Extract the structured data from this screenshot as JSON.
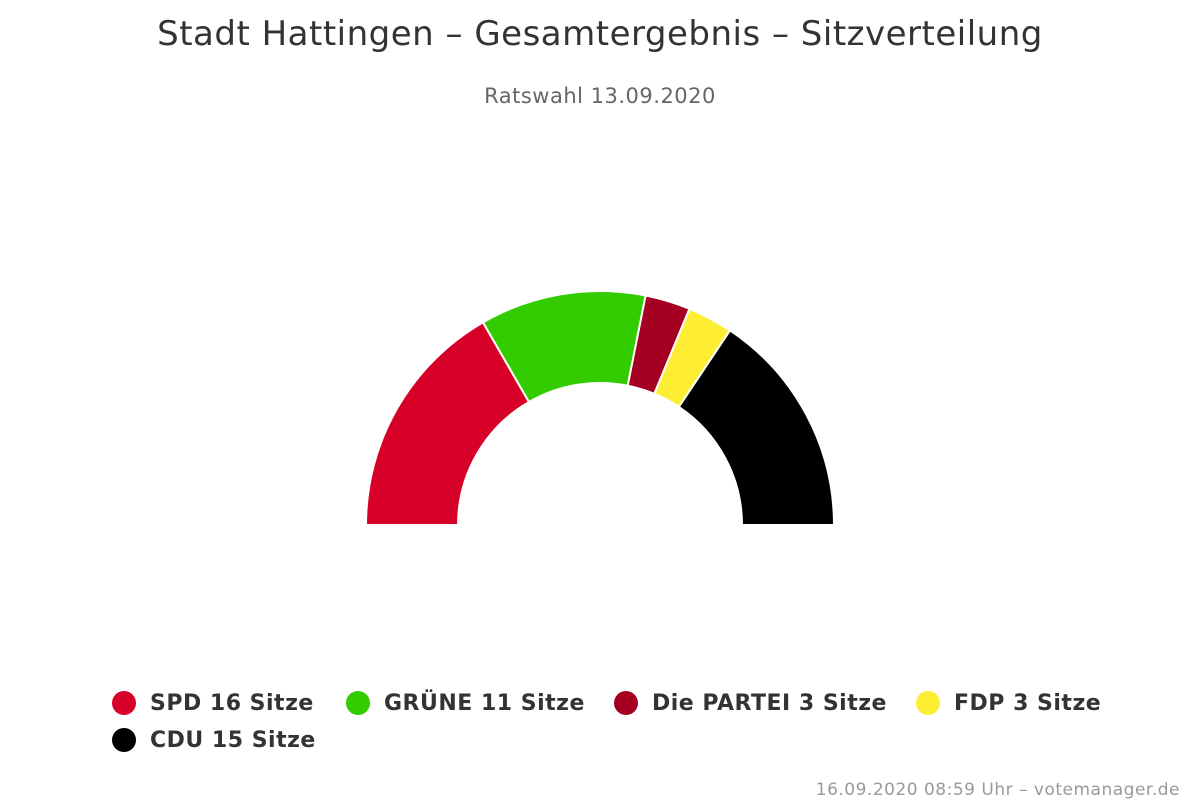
{
  "title": "Stadt Hattingen – Gesamtergebnis – Sitzverteilung",
  "subtitle": "Ratswahl 13.09.2020",
  "credits": "16.09.2020 08:59 Uhr – votemanager.de",
  "chart_data": {
    "type": "pie",
    "variant": "semicircle-parliament",
    "title": "Stadt Hattingen – Gesamtergebnis – Sitzverteilung",
    "subtitle": "Ratswahl 13.09.2020",
    "unit": "Sitze",
    "total": 48,
    "series": [
      {
        "name": "SPD",
        "value": 16,
        "color": "#d70028",
        "legend": "SPD 16 Sitze"
      },
      {
        "name": "GRÜNE",
        "value": 11,
        "color": "#33cc00",
        "legend": "GRÜNE 11 Sitze"
      },
      {
        "name": "Die PARTEI",
        "value": 3,
        "color": "#a50021",
        "legend": "Die PARTEI 3 Sitze"
      },
      {
        "name": "FDP",
        "value": 3,
        "color": "#fdee33",
        "legend": "FDP 3 Sitze"
      },
      {
        "name": "CDU",
        "value": 15,
        "color": "#000000",
        "legend": "CDU 15 Sitze"
      }
    ],
    "legend_position": "bottom"
  }
}
